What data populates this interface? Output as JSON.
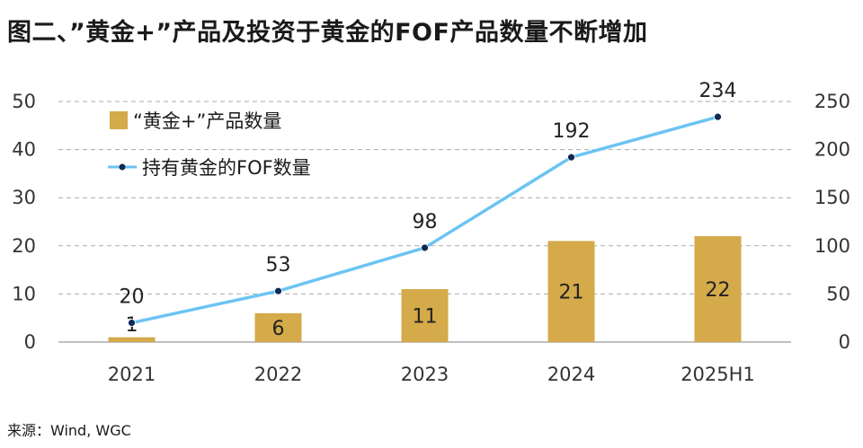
{
  "title": "图二、”黄金+”产品及投资于黄金的FOF产品数量不断增加",
  "source": "来源：Wind, WGC",
  "chart_data": {
    "type": "bar+line",
    "categories": [
      "2021",
      "2022",
      "2023",
      "2024",
      "2025H1"
    ],
    "series": [
      {
        "name": "“黄金+”产品数量",
        "type": "bar",
        "axis": "left",
        "values": [
          1,
          6,
          11,
          21,
          22
        ]
      },
      {
        "name": "持有黄金的FOF数量",
        "type": "line",
        "axis": "right",
        "values": [
          20,
          53,
          98,
          192,
          234
        ]
      }
    ],
    "y_left": {
      "min": 0,
      "max": 50,
      "ticks": [
        0,
        10,
        20,
        30,
        40,
        50
      ]
    },
    "y_right": {
      "min": 0,
      "max": 250,
      "ticks": [
        0,
        50,
        100,
        150,
        200,
        250
      ]
    },
    "grid": "horizontal dashed",
    "legend_position": "top-left",
    "colors": {
      "bar": "#D4AA4A",
      "line": "#6BC4F2",
      "marker": "#0E2A55"
    }
  }
}
